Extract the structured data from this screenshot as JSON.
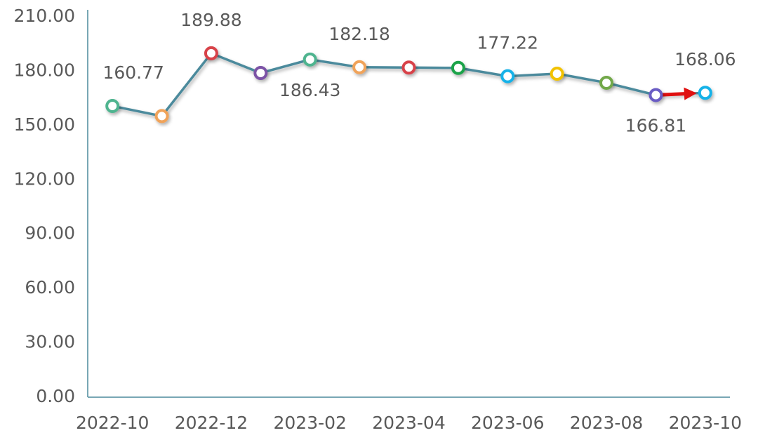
{
  "chart_data": {
    "type": "line",
    "categories": [
      "2022-10",
      null,
      "2022-12",
      null,
      "2023-02",
      null,
      "2023-04",
      null,
      "2023-06",
      null,
      "2023-08",
      null,
      "2023-10"
    ],
    "series": [
      {
        "color": "#4b8a9c",
        "values": [
          160.77,
          155.2,
          189.88,
          179.0,
          186.43,
          182.18,
          182.0,
          181.8,
          177.22,
          178.6,
          173.6,
          166.81,
          168.06
        ],
        "value_labels": [
          "160.77",
          null,
          "189.88",
          null,
          "186.43",
          "182.18",
          null,
          null,
          "177.22",
          null,
          null,
          "166.81",
          "168.06"
        ],
        "point_colors": [
          "#4fb48f",
          "#f0a35a",
          "#d8434a",
          "#7b52a6",
          "#4fb48f",
          "#f0a35a",
          "#d8434a",
          "#1aa34a",
          "#19b2e8",
          "#f2c200",
          "#72a84a",
          "#6b5bc4",
          "#19b2e8"
        ]
      }
    ],
    "ylim": [
      0,
      210
    ],
    "yticks": [
      {
        "value": 0,
        "label": "0.00"
      },
      {
        "value": 30,
        "label": "30.00"
      },
      {
        "value": 60,
        "label": "60.00"
      },
      {
        "value": 90,
        "label": "90.00"
      },
      {
        "value": 120,
        "label": "120.00"
      },
      {
        "value": 150,
        "label": "150.00"
      },
      {
        "value": 180,
        "label": "180.00"
      },
      {
        "value": 210,
        "label": "210.00"
      }
    ],
    "grid": false
  }
}
